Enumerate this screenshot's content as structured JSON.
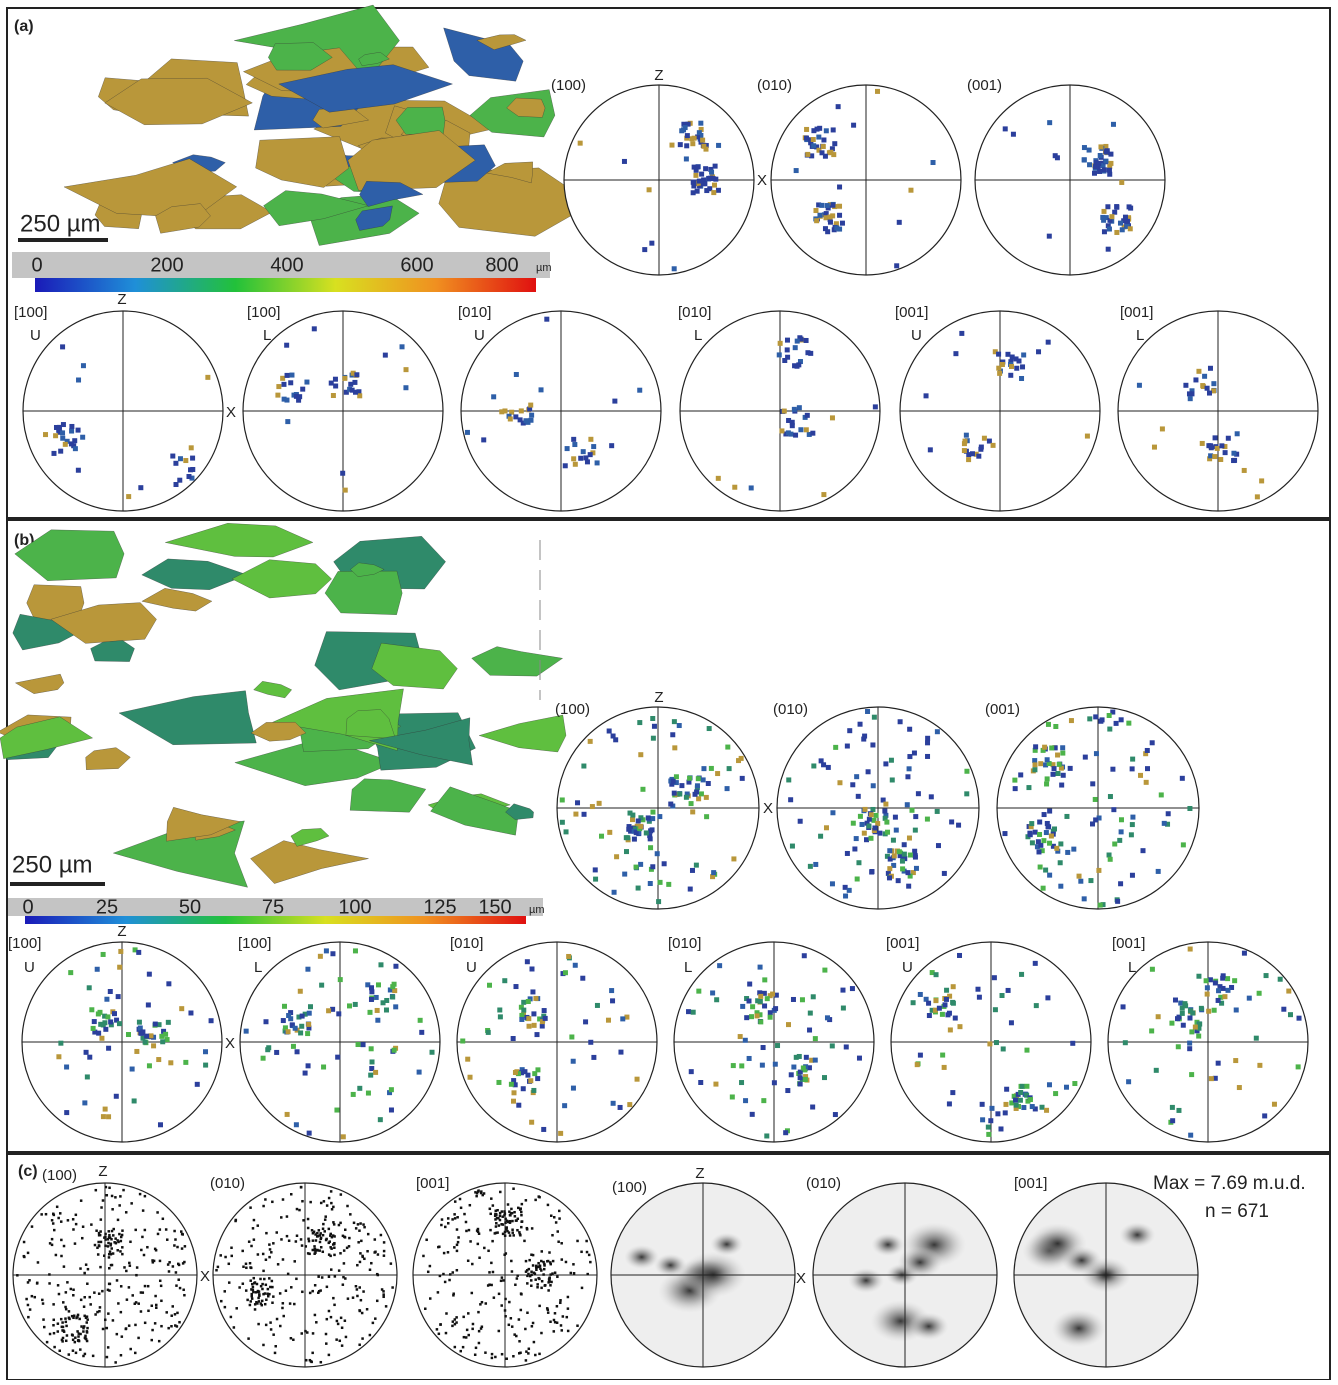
{
  "panels": [
    {
      "label": "(a)",
      "scale_bar": "250 µm",
      "colorbar": {
        "ticks": [
          0,
          200,
          400,
          600,
          800
        ],
        "unit": "µm"
      },
      "axis_z": "Z",
      "axis_x": "X",
      "top": [
        {
          "title": "(100)"
        },
        {
          "title": "(010)"
        },
        {
          "title": "(001)"
        }
      ],
      "bottom": [
        {
          "title": "[100]",
          "half": "U"
        },
        {
          "title": "[100]",
          "half": "L"
        },
        {
          "title": "[010]",
          "half": "U"
        },
        {
          "title": "[010]",
          "half": "L"
        },
        {
          "title": "[001]",
          "half": "U"
        },
        {
          "title": "[001]",
          "half": "L"
        }
      ]
    },
    {
      "label": "(b)",
      "scale_bar": "250 µm",
      "colorbar": {
        "ticks": [
          0,
          25,
          50,
          75,
          100,
          125,
          150
        ],
        "unit": "µm"
      },
      "axis_z": "Z",
      "axis_x": "X",
      "top": [
        {
          "title": "(100)"
        },
        {
          "title": "(010)"
        },
        {
          "title": "(001)"
        }
      ],
      "bottom": [
        {
          "title": "[100]",
          "half": "U"
        },
        {
          "title": "[100]",
          "half": "L"
        },
        {
          "title": "[010]",
          "half": "U"
        },
        {
          "title": "[010]",
          "half": "L"
        },
        {
          "title": "[001]",
          "half": "U"
        },
        {
          "title": "[001]",
          "half": "L"
        }
      ]
    },
    {
      "label": "(c)",
      "axis_z": "Z",
      "axis_x": "X",
      "points": [
        {
          "title": "(100)"
        },
        {
          "title": "(010)"
        },
        {
          "title": "[001]"
        }
      ],
      "density": [
        {
          "title": "(100)"
        },
        {
          "title": "(010)"
        },
        {
          "title": "[001]"
        }
      ],
      "max": "Max = 7.69 m.u.d.",
      "n": "n = 671"
    }
  ]
}
